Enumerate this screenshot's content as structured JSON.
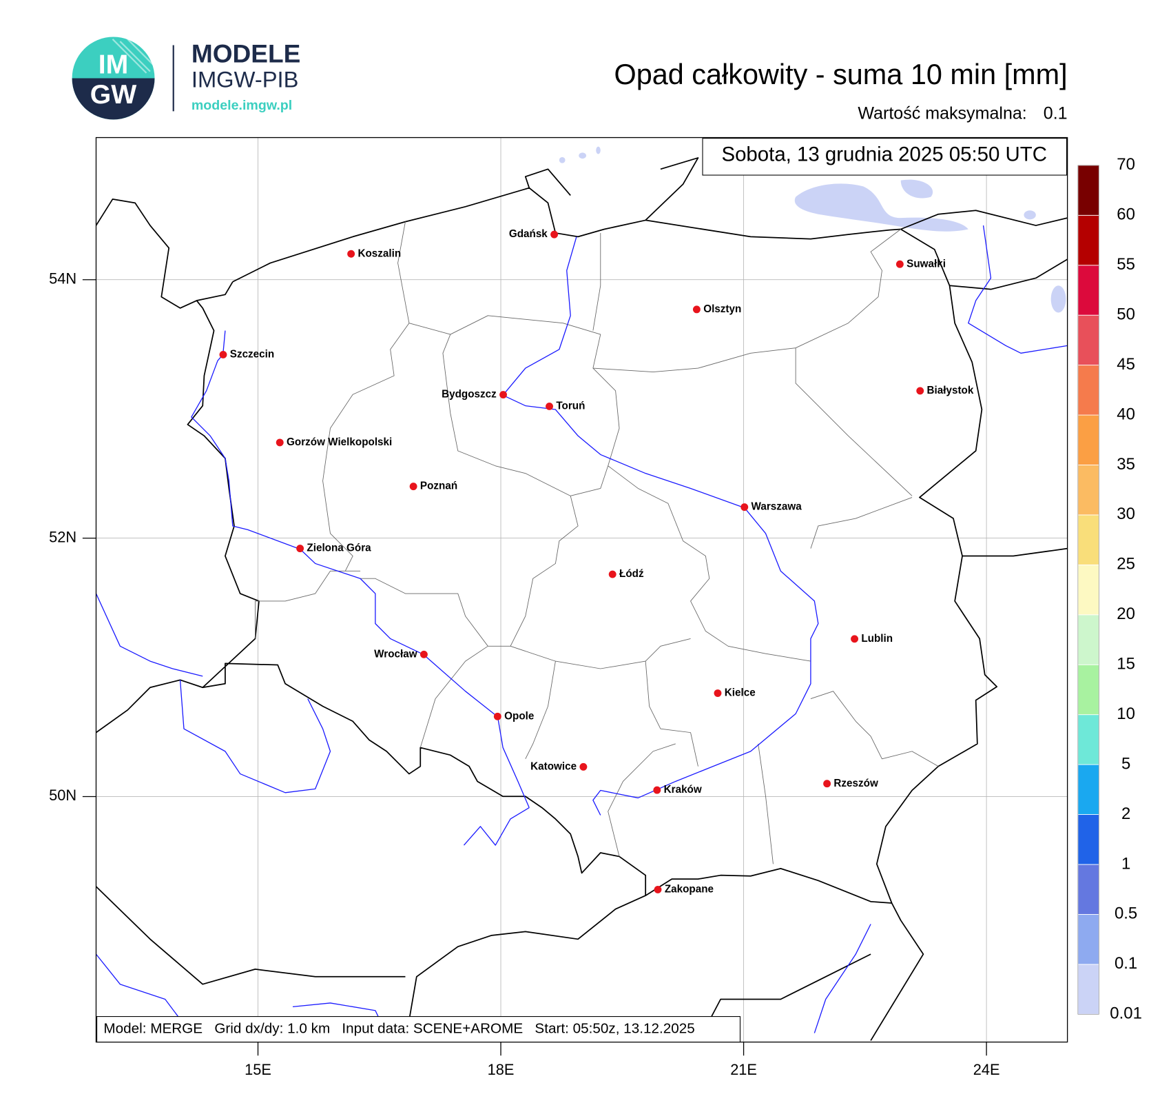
{
  "header": {
    "logo": {
      "mark_top": "IM",
      "mark_bottom": "GW",
      "name": "MODELE",
      "org": "IMGW-PIB",
      "url": "modele.imgw.pl"
    },
    "title": "Opad całkowity - suma 10 min [mm]",
    "max_label": "Wartość maksymalna:",
    "max_value": 0.1
  },
  "map": {
    "date": "Sobota, 13 grudnia 2025 05:50 UTC",
    "xlim": [
      13,
      25
    ],
    "ylim": [
      48.1,
      55.1
    ],
    "xticks": [
      {
        "value": 15,
        "label": "15E"
      },
      {
        "value": 18,
        "label": "18E"
      },
      {
        "value": 21,
        "label": "21E"
      },
      {
        "value": 24,
        "label": "24E"
      }
    ],
    "yticks": [
      {
        "value": 50,
        "label": "50N"
      },
      {
        "value": 52,
        "label": "52N"
      },
      {
        "value": 54,
        "label": "54N"
      }
    ],
    "grid": true,
    "city_color": "#e8141c",
    "cities": [
      {
        "name": "Gdańsk",
        "lon": 18.66,
        "lat": 54.35
      },
      {
        "name": "Koszalin",
        "lon": 16.15,
        "lat": 54.2
      },
      {
        "name": "Suwałki",
        "lon": 22.93,
        "lat": 54.12
      },
      {
        "name": "Olsztyn",
        "lon": 20.42,
        "lat": 53.77
      },
      {
        "name": "Szczecin",
        "lon": 14.57,
        "lat": 53.42
      },
      {
        "name": "Bydgoszcz",
        "lon": 18.03,
        "lat": 53.11
      },
      {
        "name": "Toruń",
        "lon": 18.6,
        "lat": 53.02
      },
      {
        "name": "Białystok",
        "lon": 23.18,
        "lat": 53.14
      },
      {
        "name": "Gorzów Wielkopolski",
        "lon": 15.27,
        "lat": 52.74
      },
      {
        "name": "Poznań",
        "lon": 16.92,
        "lat": 52.4
      },
      {
        "name": "Warszawa",
        "lon": 21.01,
        "lat": 52.24
      },
      {
        "name": "Zielona Góra",
        "lon": 15.52,
        "lat": 51.92
      },
      {
        "name": "Łódź",
        "lon": 19.38,
        "lat": 51.72
      },
      {
        "name": "Lublin",
        "lon": 22.37,
        "lat": 51.22
      },
      {
        "name": "Wrocław",
        "lon": 17.05,
        "lat": 51.1
      },
      {
        "name": "Kielce",
        "lon": 20.68,
        "lat": 50.8
      },
      {
        "name": "Opole",
        "lon": 17.96,
        "lat": 50.62
      },
      {
        "name": "Katowice",
        "lon": 19.02,
        "lat": 50.23
      },
      {
        "name": "Kraków",
        "lon": 19.93,
        "lat": 50.05
      },
      {
        "name": "Rzeszów",
        "lon": 22.03,
        "lat": 50.1
      },
      {
        "name": "Zakopane",
        "lon": 19.94,
        "lat": 49.28
      }
    ],
    "footer": "Model: MERGE   Grid dx/dy: 1.0 km   Input data: SCENE+AROME   Start: 05:50z, 13.12.2025"
  },
  "colorbar": {
    "levels": [
      0.01,
      0.1,
      0.5,
      1,
      2,
      5,
      10,
      15,
      20,
      25,
      30,
      35,
      40,
      45,
      50,
      55,
      60,
      70
    ],
    "colors": [
      "#cbd3f6",
      "#8eaaf0",
      "#6478e0",
      "#2063e8",
      "#1aa8f0",
      "#6ee8d8",
      "#a8f2a0",
      "#cdf6cc",
      "#fdf9c2",
      "#f9de7a",
      "#fbbb62",
      "#fb9f44",
      "#f57b4c",
      "#e8505a",
      "#dc0a3c",
      "#b40000",
      "#780000"
    ]
  }
}
